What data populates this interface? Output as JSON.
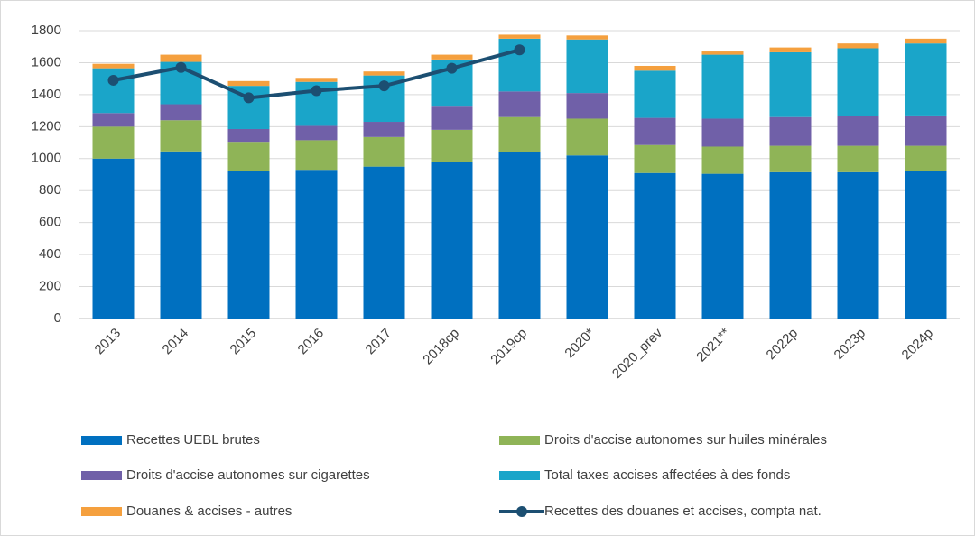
{
  "chart_data": {
    "type": "bar",
    "stacked": true,
    "categories": [
      "2013",
      "2014",
      "2015",
      "2016",
      "2017",
      "2018cp",
      "2019cp",
      "2020*",
      "2020_prev",
      "2021**",
      "2022p",
      "2023p",
      "2024p"
    ],
    "series": [
      {
        "name": "Recettes UEBL brutes",
        "color": "#0070c0",
        "values": [
          1000,
          1045,
          920,
          930,
          950,
          980,
          1040,
          1020,
          910,
          905,
          915,
          915,
          920
        ]
      },
      {
        "name": "Droits d'accise autonomes sur huiles minérales",
        "color": "#8fb457",
        "values": [
          200,
          195,
          185,
          185,
          185,
          200,
          220,
          230,
          175,
          170,
          165,
          165,
          160
        ]
      },
      {
        "name": "Droits d'accise autonomes sur cigarettes",
        "color": "#7060a8",
        "values": [
          85,
          100,
          80,
          90,
          95,
          145,
          160,
          160,
          170,
          175,
          180,
          185,
          190
        ]
      },
      {
        "name": "Total taxes accises affectées à des fonds",
        "color": "#1aa5c9",
        "values": [
          280,
          265,
          270,
          275,
          290,
          295,
          330,
          335,
          295,
          400,
          405,
          425,
          450
        ]
      },
      {
        "name": "Douanes & accises - autres",
        "color": "#f5a03e",
        "values": [
          28,
          45,
          30,
          25,
          25,
          30,
          25,
          25,
          30,
          20,
          30,
          30,
          30
        ]
      },
      {
        "name": "Recettes des douanes et accises, compta nat.",
        "color": "#1c4f72",
        "type": "line",
        "values": [
          1490,
          1570,
          1380,
          1425,
          1455,
          1565,
          1680,
          null,
          null,
          null,
          null,
          null,
          null
        ]
      }
    ],
    "ylim": [
      0,
      1800
    ],
    "yticks": [
      0,
      200,
      400,
      600,
      800,
      1000,
      1200,
      1400,
      1600,
      1800
    ],
    "grid": true,
    "legend": "bottom"
  }
}
